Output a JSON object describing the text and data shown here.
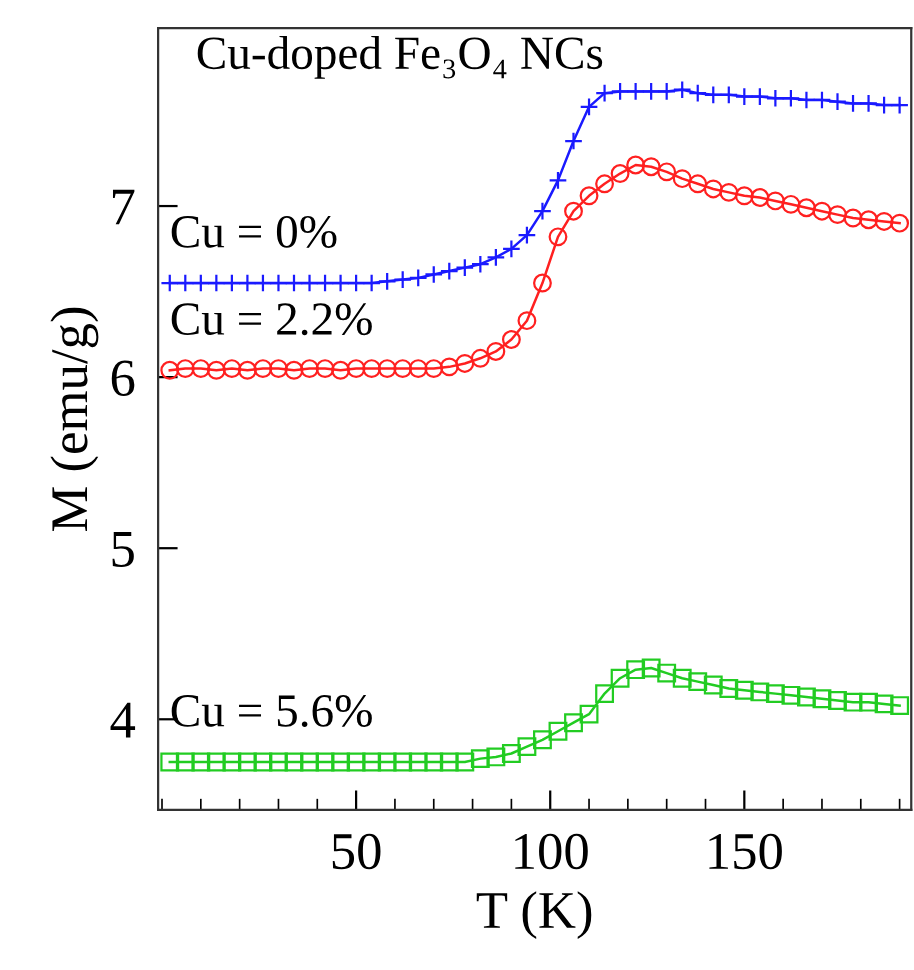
{
  "chart_data": {
    "type": "line",
    "xlabel": "T (K)",
    "ylabel": "M (emu/g)",
    "annotations": [
      "Cu-doped Fe₃O₄ NCs"
    ],
    "x": [
      2,
      6,
      10,
      14,
      18,
      22,
      26,
      30,
      34,
      38,
      42,
      46,
      50,
      54,
      58,
      62,
      66,
      70,
      74,
      78,
      82,
      86,
      90,
      94,
      98,
      102,
      106,
      110,
      114,
      118,
      122,
      126,
      130,
      134,
      138,
      142,
      146,
      150,
      154,
      158,
      162,
      166,
      170,
      174,
      178,
      182,
      186,
      190
    ],
    "series": [
      {
        "name": "Cu = 0%",
        "color": "#1a1aff",
        "marker": "cross",
        "values": [
          6.55,
          6.55,
          6.55,
          6.55,
          6.55,
          6.55,
          6.55,
          6.55,
          6.55,
          6.55,
          6.55,
          6.55,
          6.55,
          6.55,
          6.56,
          6.57,
          6.58,
          6.6,
          6.62,
          6.64,
          6.66,
          6.7,
          6.75,
          6.83,
          6.97,
          7.15,
          7.38,
          7.58,
          7.66,
          7.67,
          7.67,
          7.67,
          7.67,
          7.68,
          7.66,
          7.65,
          7.65,
          7.64,
          7.64,
          7.63,
          7.63,
          7.62,
          7.62,
          7.61,
          7.6,
          7.6,
          7.59,
          7.59
        ]
      },
      {
        "name": "Cu = 2.2%",
        "color": "#ff2020",
        "marker": "circle",
        "values": [
          6.04,
          6.05,
          6.05,
          6.04,
          6.05,
          6.04,
          6.05,
          6.05,
          6.04,
          6.05,
          6.05,
          6.04,
          6.05,
          6.05,
          6.05,
          6.05,
          6.05,
          6.05,
          6.06,
          6.08,
          6.11,
          6.15,
          6.22,
          6.33,
          6.55,
          6.82,
          6.97,
          7.06,
          7.13,
          7.19,
          7.24,
          7.23,
          7.2,
          7.16,
          7.13,
          7.1,
          7.08,
          7.06,
          7.05,
          7.03,
          7.01,
          6.99,
          6.97,
          6.95,
          6.93,
          6.92,
          6.91,
          6.9
        ]
      },
      {
        "name": "Cu = 5.6%",
        "color": "#22cc22",
        "marker": "square",
        "values": [
          3.75,
          3.75,
          3.75,
          3.75,
          3.75,
          3.75,
          3.75,
          3.75,
          3.75,
          3.75,
          3.75,
          3.75,
          3.75,
          3.75,
          3.75,
          3.75,
          3.75,
          3.75,
          3.75,
          3.75,
          3.77,
          3.78,
          3.8,
          3.84,
          3.88,
          3.93,
          3.98,
          4.03,
          4.15,
          4.24,
          4.29,
          4.3,
          4.27,
          4.24,
          4.22,
          4.2,
          4.18,
          4.17,
          4.16,
          4.15,
          4.14,
          4.13,
          4.12,
          4.11,
          4.1,
          4.1,
          4.09,
          4.08
        ]
      }
    ],
    "xlim": [
      -1,
      193
    ],
    "ylim": [
      3.47,
      8.04
    ],
    "xticks": [
      50,
      100,
      150
    ],
    "yticks": [
      4,
      5,
      6,
      7
    ],
    "grid": false,
    "legend": false,
    "line_style": "solid"
  }
}
